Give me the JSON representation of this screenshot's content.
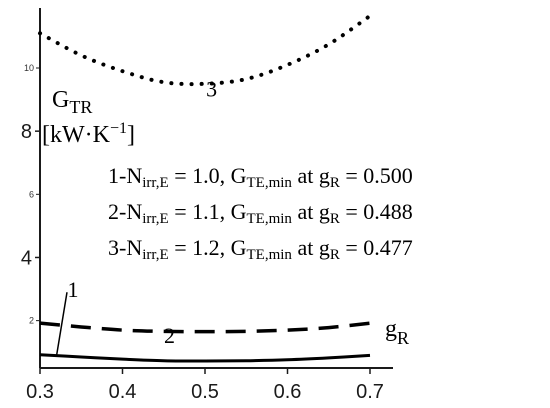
{
  "chart_data": {
    "type": "line",
    "xlim": [
      0.3,
      0.7
    ],
    "ylim": [
      0.5,
      11.9
    ],
    "x_ticks": [
      "0.3",
      "0.4",
      "0.5",
      "0.6",
      "0.7"
    ],
    "y_ticks_large": [
      {
        "value": 4,
        "label": "4"
      },
      {
        "value": 8,
        "label": "8"
      }
    ],
    "y_ticks_small": [
      {
        "value": 2,
        "label": "2"
      },
      {
        "value": 6,
        "label": "6"
      },
      {
        "value": 10,
        "label": "10"
      }
    ],
    "ylabel": {
      "main": "G",
      "sub": "TR",
      "unit": "[kW·K",
      "unit_exp": "−1",
      "unit_close": "]"
    },
    "xlabel": {
      "main": "g",
      "sub": "R"
    },
    "legend_lines": [
      {
        "num": "1",
        "n_val": "1.0",
        "g_val": "0.500"
      },
      {
        "num": "2",
        "n_val": "1.1",
        "g_val": "0.488"
      },
      {
        "num": "3",
        "n_val": "1.2",
        "g_val": "0.477"
      }
    ],
    "legend_parts": {
      "dash": "-N",
      "n_sub": "irr,E",
      "eq1": " = ",
      "sep": ", G",
      "g_sub": "TE,min",
      "at": " at g",
      "gr_sub": "R",
      "eq2": " = "
    },
    "series": [
      {
        "name": "1",
        "style": "solid",
        "x": [
          0.3,
          0.35,
          0.4,
          0.45,
          0.5,
          0.55,
          0.6,
          0.65,
          0.7
        ],
        "y": [
          0.92,
          0.85,
          0.78,
          0.73,
          0.72,
          0.73,
          0.76,
          0.82,
          0.9
        ]
      },
      {
        "name": "2",
        "style": "dashed",
        "x": [
          0.3,
          0.35,
          0.4,
          0.45,
          0.5,
          0.55,
          0.6,
          0.65,
          0.7
        ],
        "y": [
          1.92,
          1.8,
          1.7,
          1.66,
          1.65,
          1.66,
          1.7,
          1.78,
          1.92
        ]
      },
      {
        "name": "3",
        "style": "dotted",
        "x": [
          0.3,
          0.35,
          0.4,
          0.45,
          0.5,
          0.55,
          0.6,
          0.65,
          0.7
        ],
        "y": [
          11.1,
          10.4,
          9.9,
          9.55,
          9.5,
          9.65,
          10.1,
          10.75,
          11.65
        ]
      }
    ],
    "curve_labels": [
      {
        "text": "1",
        "x": 0.34,
        "y": 3.0
      },
      {
        "text": "2",
        "x": 0.457,
        "y": 1.55
      },
      {
        "text": "3",
        "x": 0.508,
        "y": 9.35
      }
    ],
    "leader_line": {
      "from": [
        0.34,
        2.9
      ],
      "to": [
        0.32,
        0.88
      ]
    },
    "colors": {
      "axis": "#1a1a1a",
      "curve": "#000000",
      "text": "#000000"
    }
  }
}
